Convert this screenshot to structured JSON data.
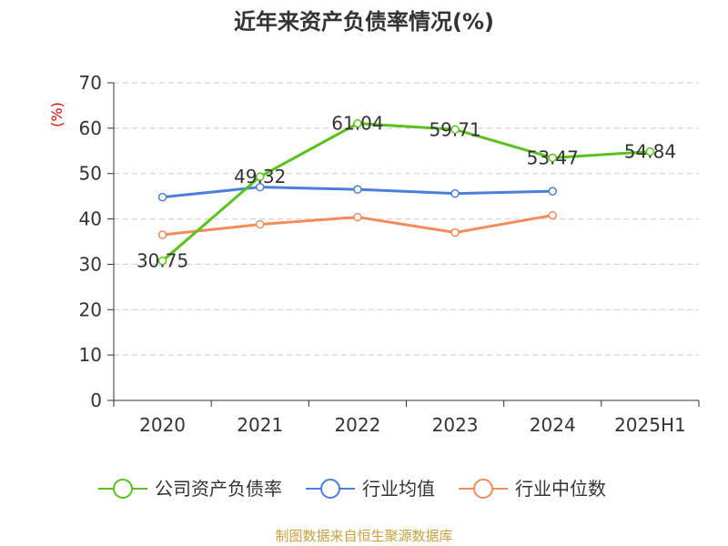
{
  "colors": {
    "text": "#333333",
    "axis": "#333333",
    "grid": "#cccccc",
    "unit_label": "#e00000",
    "source": "#c8a040",
    "company": "#5ac21e",
    "industry_avg": "#4a7fdb",
    "industry_median": "#f58a5a"
  },
  "footer": {
    "source": "制图数据来自恒生聚源数据库"
  },
  "chart_data": {
    "type": "line",
    "title": "近年来资产负债率情况(%)",
    "ylabel": "(%)",
    "xlabel": "",
    "categories": [
      "2020",
      "2021",
      "2022",
      "2023",
      "2024",
      "2025H1"
    ],
    "ylim": [
      0,
      70
    ],
    "yticks": [
      0,
      10,
      20,
      30,
      40,
      50,
      60,
      70
    ],
    "grid": true,
    "legend_position": "bottom",
    "series": [
      {
        "name": "公司资产负债率",
        "color": "#5ac21e",
        "values": [
          30.75,
          49.32,
          61.04,
          59.71,
          53.47,
          54.84
        ],
        "labels": [
          "30.75",
          "49.32",
          "61.04",
          "59.71",
          "53.47",
          "54.84"
        ]
      },
      {
        "name": "行业均值",
        "color": "#4a7fdb",
        "values": [
          44.8,
          47.0,
          46.5,
          45.6,
          46.1,
          null
        ]
      },
      {
        "name": "行业中位数",
        "color": "#f58a5a",
        "values": [
          36.5,
          38.8,
          40.4,
          37.0,
          40.8,
          null
        ]
      }
    ]
  }
}
